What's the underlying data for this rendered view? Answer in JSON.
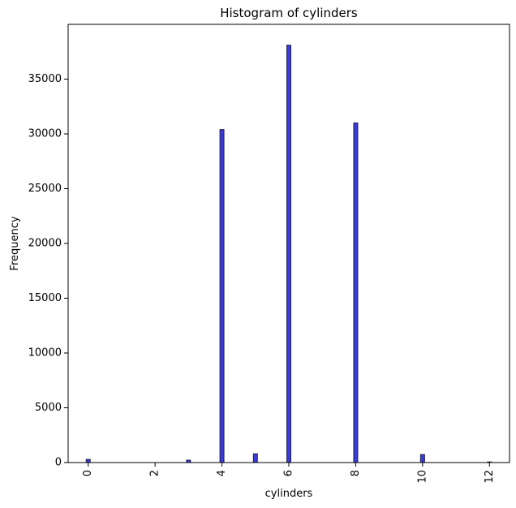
{
  "chart_data": {
    "type": "bar",
    "title": "Histogram of cylinders",
    "xlabel": "cylinders",
    "ylabel": "Frequency",
    "xlim": [
      -0.6,
      12.6
    ],
    "ylim": [
      0,
      40000
    ],
    "x_ticks": [
      "0",
      "2",
      "4",
      "6",
      "8",
      "10",
      "12"
    ],
    "x_tick_rotation": -90,
    "y_ticks": [
      "0",
      "5000",
      "10000",
      "15000",
      "20000",
      "25000",
      "30000",
      "35000"
    ],
    "grid": false,
    "bar_color": "#3b3bdc",
    "bar_edge_color": "#1f1f4a",
    "bins": [
      {
        "x": 0,
        "value": 290
      },
      {
        "x": 3,
        "value": 220
      },
      {
        "x": 4,
        "value": 30400
      },
      {
        "x": 5,
        "value": 800
      },
      {
        "x": 6,
        "value": 38100
      },
      {
        "x": 8,
        "value": 31000
      },
      {
        "x": 10,
        "value": 730
      },
      {
        "x": 12,
        "value": 60
      }
    ]
  }
}
